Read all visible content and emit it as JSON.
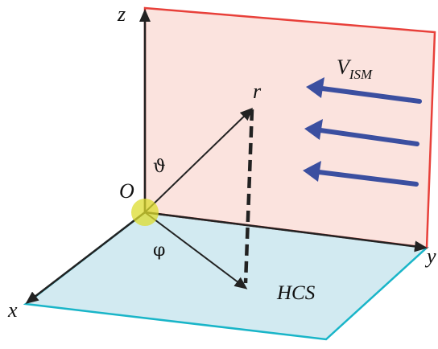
{
  "diagram": {
    "labels": {
      "axis_z": "z",
      "axis_y": "y",
      "axis_x": "x",
      "origin": "O",
      "vector_r": "r",
      "theta": "ϑ",
      "phi": "φ",
      "v_ism_main": "V",
      "v_ism_sub": "ISM",
      "hcs": "HCS"
    },
    "colors": {
      "vertical_plane_fill": "#fbe3de",
      "vertical_plane_stroke": "#e8403a",
      "ground_plane_fill": "#d2eaf1",
      "ground_plane_stroke": "#19b5c8",
      "flow_arrows": "#3b4fa0",
      "origin_marker": "#dcdc2e",
      "axes": "#222222"
    },
    "flow_arrow_count": 3
  }
}
